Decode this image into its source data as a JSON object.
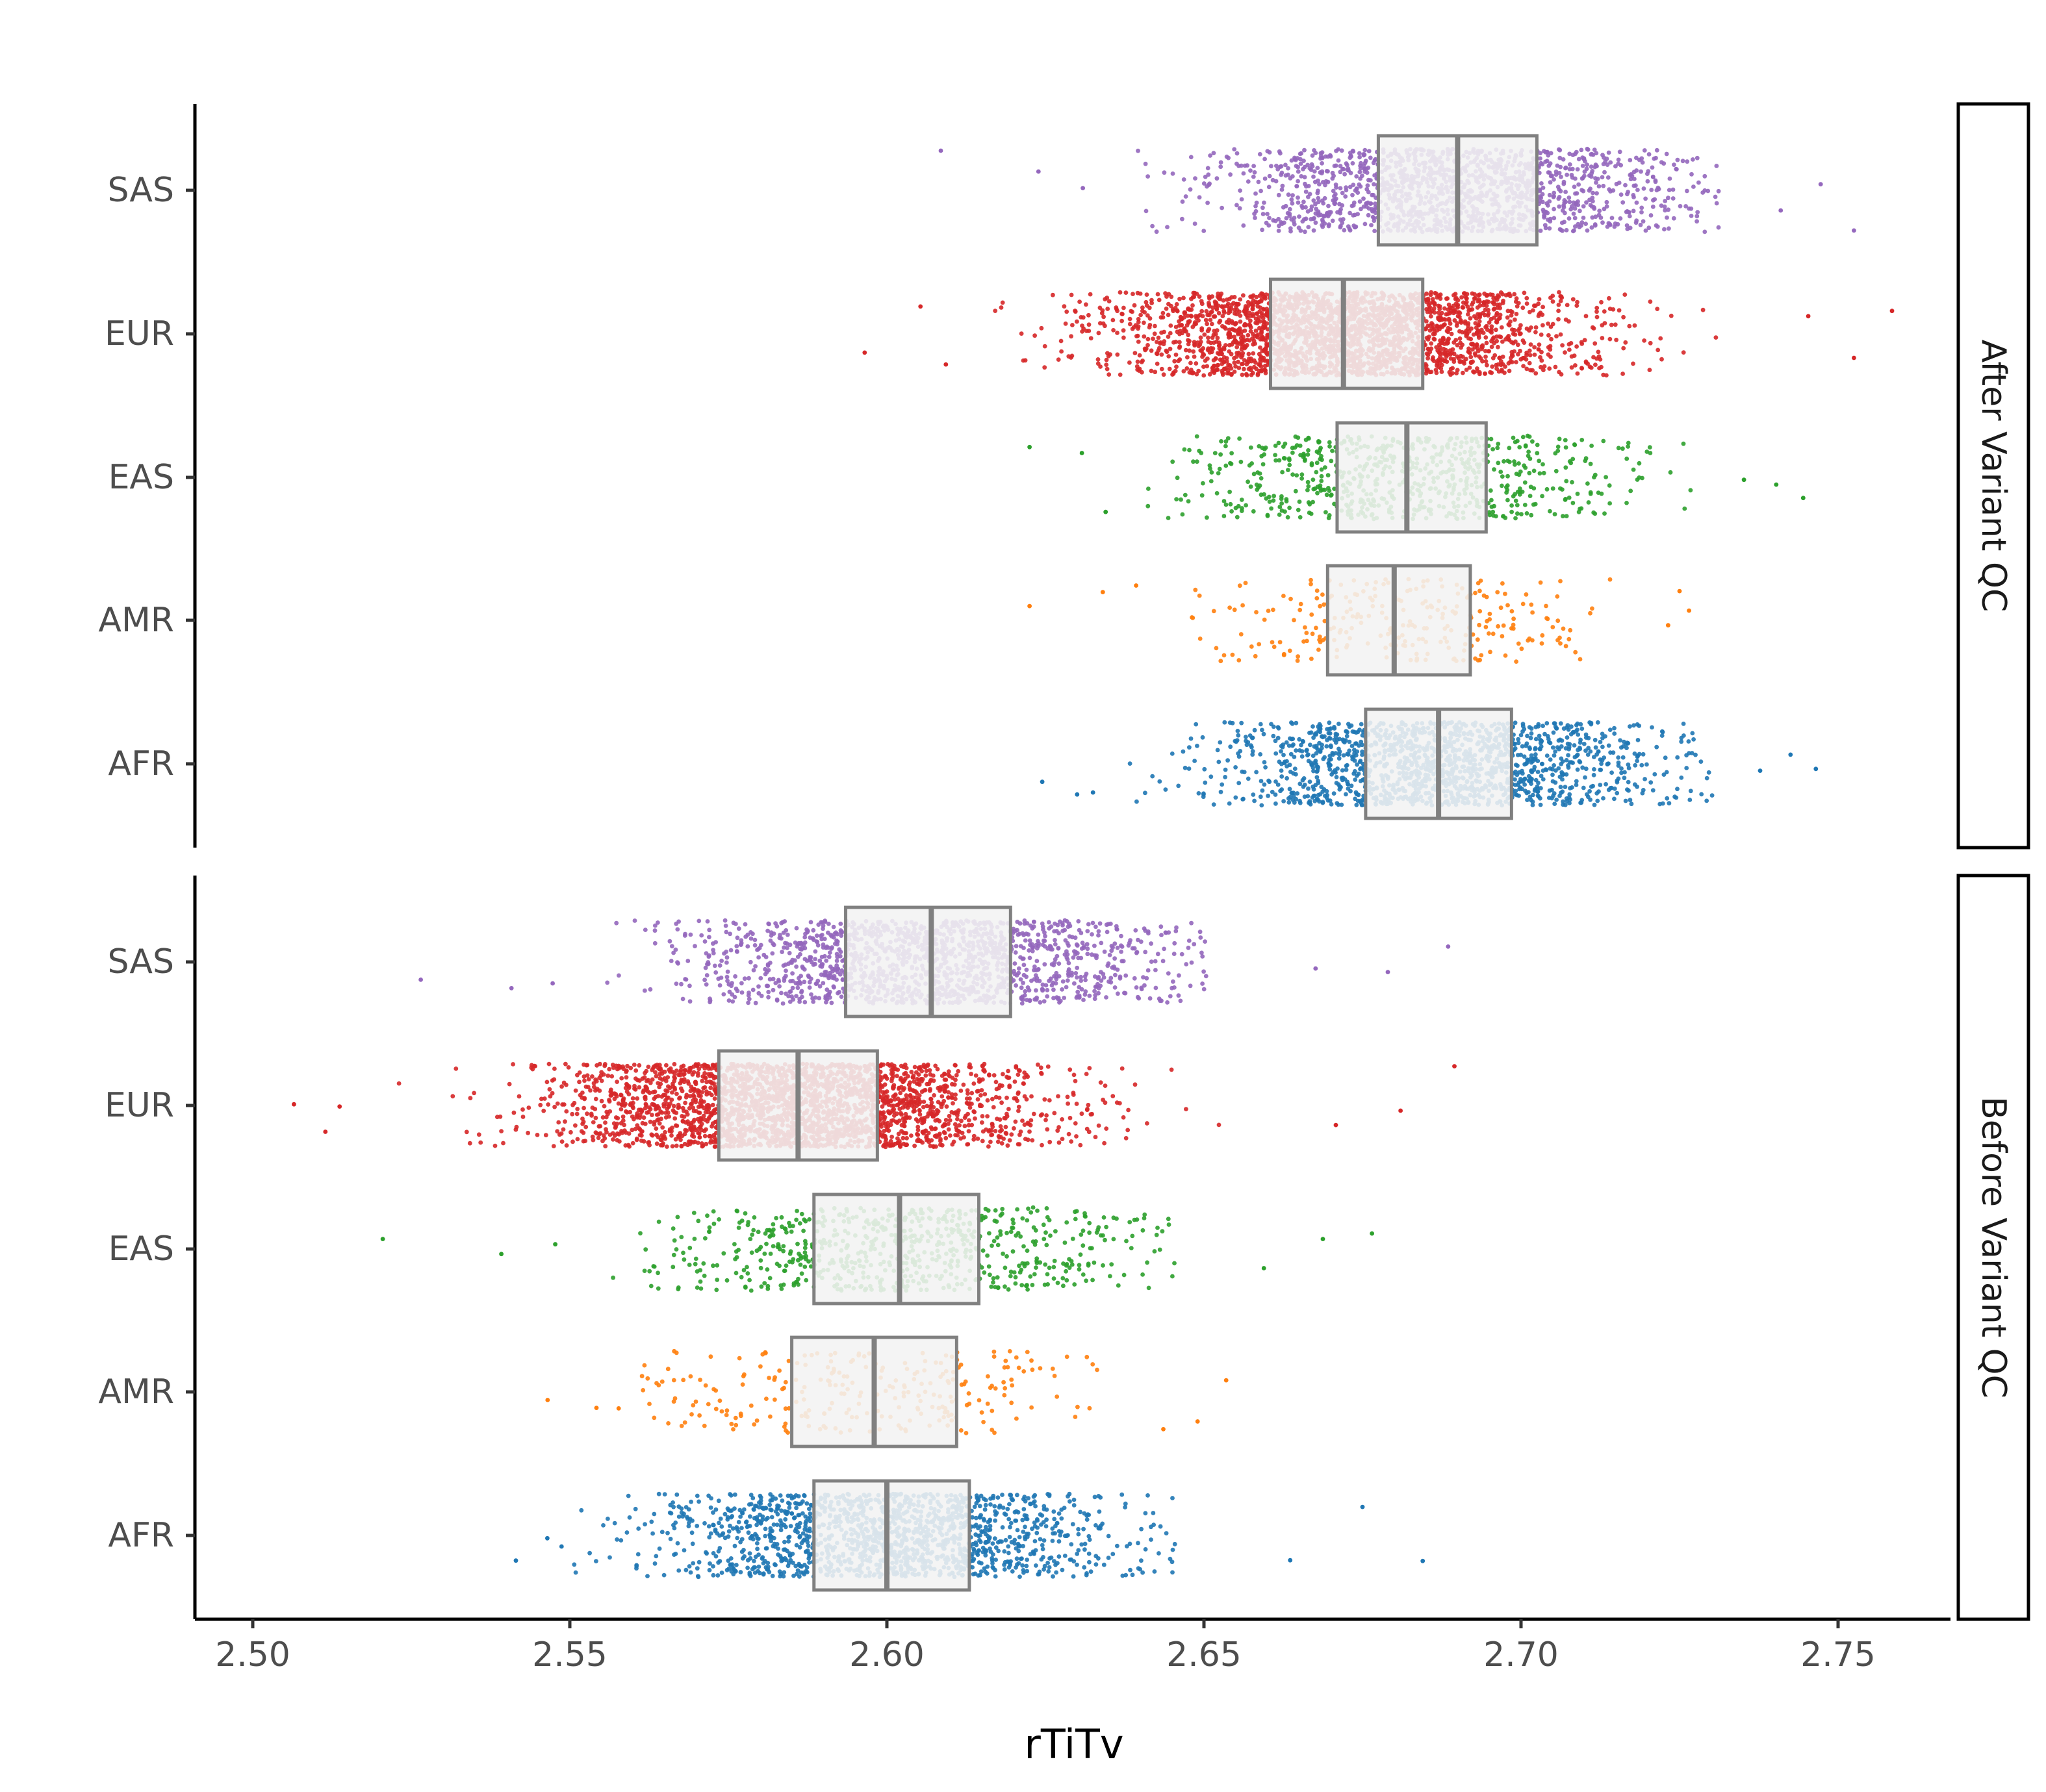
{
  "chart_data": {
    "type": "scatter",
    "subtype": "horizontal jittered strip plot with boxplots, faceted",
    "xlabel": "rTiTv",
    "xlim": [
      2.494,
      2.771
    ],
    "x_ticks": [
      "2.50",
      "2.55",
      "2.60",
      "2.65",
      "2.70",
      "2.75"
    ],
    "x_tick_values": [
      2.5,
      2.55,
      2.6,
      2.65,
      2.7,
      2.75
    ],
    "categories": [
      "SAS",
      "EUR",
      "EAS",
      "AMR",
      "AFR"
    ],
    "grid": false,
    "legend": "none",
    "point_colors": {
      "SAS": "#9467bd",
      "EUR": "#d62728",
      "EAS": "#2ca02c",
      "AMR": "#ff7f0e",
      "AFR": "#1f77b4"
    },
    "box_fill": "#f2f2f2",
    "box_stroke": "#808080",
    "panels": [
      {
        "facet_label": "After Variant QC",
        "series": [
          {
            "group": "SAS",
            "q1": 2.6775,
            "median": 2.69,
            "q3": 2.7025,
            "dense_min": 2.6365,
            "dense_max": 2.7315,
            "min": 2.6085,
            "max": 2.7525,
            "density": "high"
          },
          {
            "group": "EUR",
            "q1": 2.6605,
            "median": 2.672,
            "q3": 2.6845,
            "dense_min": 2.6125,
            "dense_max": 2.7345,
            "min": 2.5965,
            "max": 2.7585,
            "density": "very high"
          },
          {
            "group": "EAS",
            "q1": 2.671,
            "median": 2.682,
            "q3": 2.6945,
            "dense_min": 2.6375,
            "dense_max": 2.7275,
            "min": 2.6225,
            "max": 2.7445,
            "density": "medium"
          },
          {
            "group": "AMR",
            "q1": 2.6695,
            "median": 2.68,
            "q3": 2.692,
            "dense_min": 2.6435,
            "dense_max": 2.7205,
            "min": 2.6225,
            "max": 2.7265,
            "density": "low"
          },
          {
            "group": "AFR",
            "q1": 2.6755,
            "median": 2.687,
            "q3": 2.6985,
            "dense_min": 2.6345,
            "dense_max": 2.7305,
            "min": 2.6245,
            "max": 2.7465,
            "density": "high"
          }
        ]
      },
      {
        "facet_label": "Before Variant QC",
        "series": [
          {
            "group": "SAS",
            "q1": 2.5935,
            "median": 2.607,
            "q3": 2.6195,
            "dense_min": 2.5525,
            "dense_max": 2.6505,
            "min": 2.5265,
            "max": 2.6885,
            "density": "high"
          },
          {
            "group": "EUR",
            "q1": 2.5735,
            "median": 2.586,
            "q3": 2.5985,
            "dense_min": 2.5155,
            "dense_max": 2.6555,
            "min": 2.5065,
            "max": 2.6895,
            "density": "very high"
          },
          {
            "group": "EAS",
            "q1": 2.5885,
            "median": 2.602,
            "q3": 2.6145,
            "dense_min": 2.5545,
            "dense_max": 2.6455,
            "min": 2.5205,
            "max": 2.6765,
            "density": "medium"
          },
          {
            "group": "AMR",
            "q1": 2.585,
            "median": 2.598,
            "q3": 2.611,
            "dense_min": 2.5605,
            "dense_max": 2.6355,
            "min": 2.5465,
            "max": 2.6535,
            "density": "low"
          },
          {
            "group": "AFR",
            "q1": 2.5885,
            "median": 2.6,
            "q3": 2.613,
            "dense_min": 2.5505,
            "dense_max": 2.6465,
            "min": 2.5415,
            "max": 2.6845,
            "density": "high"
          }
        ]
      }
    ]
  }
}
